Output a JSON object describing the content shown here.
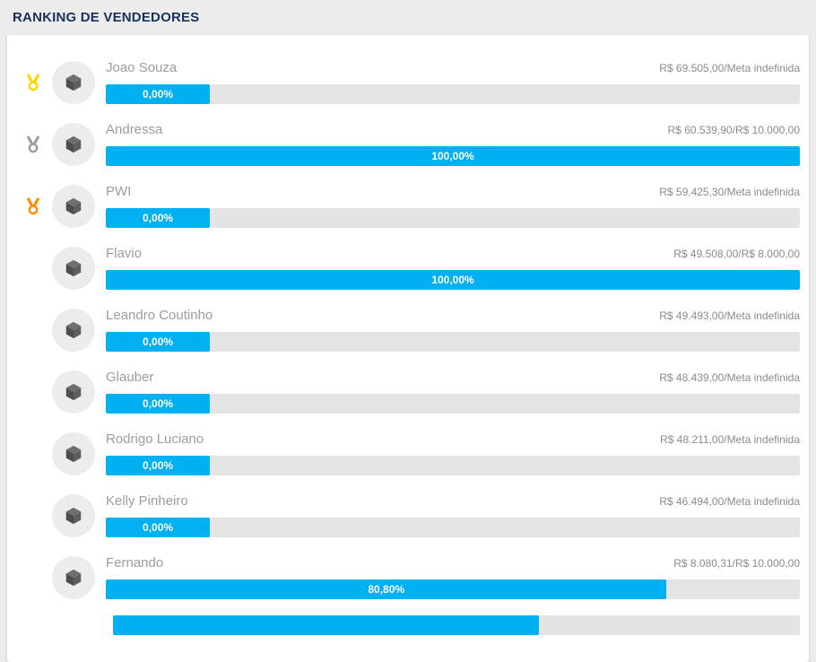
{
  "page": {
    "title": "RANKING DE VENDEDORES"
  },
  "colors": {
    "accent": "#00b0f0",
    "title": "#16325c",
    "medals": {
      "gold": "#ffd600",
      "silver": "#9e9e9e",
      "bronze": "#ff8f00"
    }
  },
  "ranking": {
    "rows": [
      {
        "name": "Joao Souza",
        "value": "R$ 69.505,00/Meta indefinida",
        "percent": "0,00%",
        "bar_fill_pct": 15,
        "medal": "gold"
      },
      {
        "name": "Andressa",
        "value": "R$ 60.539,90/R$ 10.000,00",
        "percent": "100,00%",
        "bar_fill_pct": 100,
        "medal": "silver"
      },
      {
        "name": "PWI",
        "value": "R$ 59.425,30/Meta indefinida",
        "percent": "0,00%",
        "bar_fill_pct": 15,
        "medal": "bronze"
      },
      {
        "name": "Flavio",
        "value": "R$ 49.508,00/R$ 8.000,00",
        "percent": "100,00%",
        "bar_fill_pct": 100,
        "medal": null
      },
      {
        "name": "Leandro Coutinho",
        "value": "R$ 49.493,00/Meta indefinida",
        "percent": "0,00%",
        "bar_fill_pct": 15,
        "medal": null
      },
      {
        "name": "Glauber",
        "value": "R$ 48.439,00/Meta indefinida",
        "percent": "0,00%",
        "bar_fill_pct": 15,
        "medal": null
      },
      {
        "name": "Rodrigo Luciano",
        "value": "R$ 48.211,00/Meta indefinida",
        "percent": "0,00%",
        "bar_fill_pct": 15,
        "medal": null
      },
      {
        "name": "Kelly Pinheiro",
        "value": "R$ 46.494,00/Meta indefinida",
        "percent": "0,00%",
        "bar_fill_pct": 15,
        "medal": null
      },
      {
        "name": "Fernando",
        "value": "R$ 8.080,31/R$ 10.000,00",
        "percent": "80,80%",
        "bar_fill_pct": 80.8,
        "medal": null
      }
    ],
    "partial_row": {
      "bar_fill_pct": 62
    }
  }
}
